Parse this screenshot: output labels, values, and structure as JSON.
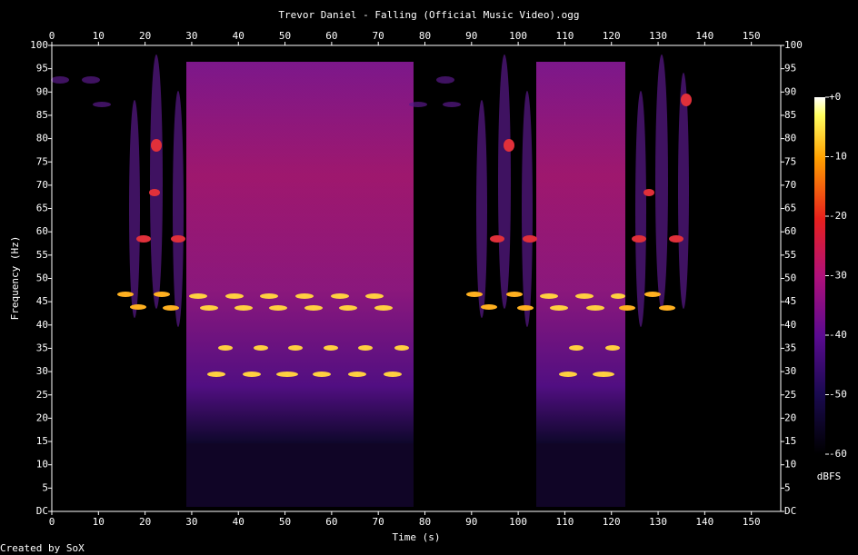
{
  "chart_data": {
    "type": "spectrogram",
    "title": "Trevor Daniel - Falling (Official Music Video).ogg",
    "xlabel": "Time (s)",
    "ylabel": "Frequency (Hz)",
    "xlim": [
      0,
      156.3
    ],
    "xticks": [
      0,
      10,
      20,
      30,
      40,
      50,
      60,
      70,
      80,
      90,
      100,
      110,
      120,
      130,
      140,
      150
    ],
    "ylim": [
      0,
      100
    ],
    "yticks": [
      {
        "value": 0,
        "label": "DC"
      },
      5,
      10,
      15,
      20,
      25,
      30,
      35,
      40,
      45,
      50,
      55,
      60,
      65,
      70,
      75,
      80,
      85,
      90,
      95,
      100
    ],
    "colorbar": {
      "label": "dBFS",
      "lim": [
        -60,
        0
      ],
      "ticks": [
        {
          "value": 0,
          "label": "+0"
        },
        -10,
        -20,
        -30,
        -40,
        -50,
        -60
      ]
    },
    "footer": "Created by SoX",
    "grid": false
  }
}
